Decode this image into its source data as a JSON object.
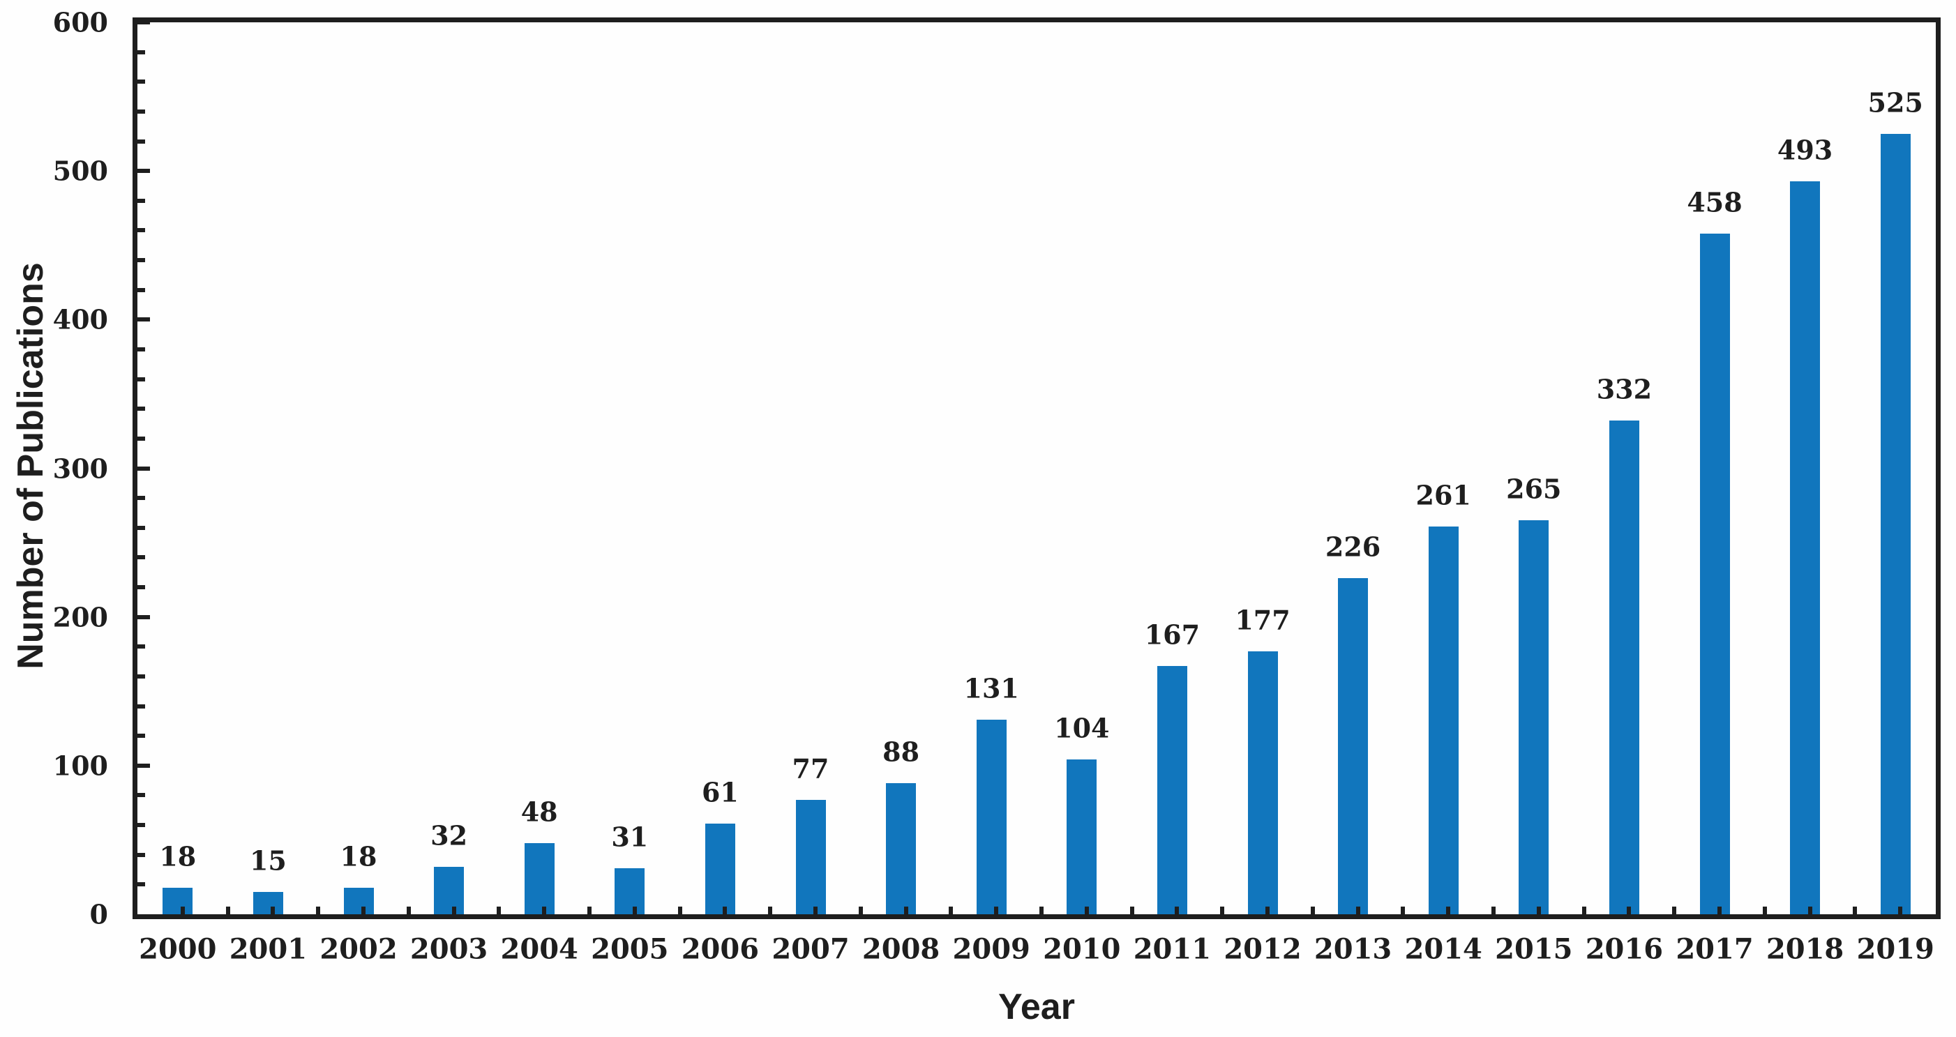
{
  "chart_data": {
    "type": "bar",
    "categories": [
      "2000",
      "2001",
      "2002",
      "2003",
      "2004",
      "2005",
      "2006",
      "2007",
      "2008",
      "2009",
      "2010",
      "2011",
      "2012",
      "2013",
      "2014",
      "2015",
      "2016",
      "2017",
      "2018",
      "2019"
    ],
    "values": [
      18,
      15,
      18,
      32,
      48,
      31,
      61,
      77,
      88,
      131,
      104,
      167,
      177,
      226,
      261,
      265,
      332,
      458,
      493,
      525
    ],
    "title": "",
    "xlabel": "Year",
    "ylabel": "Number of Publications",
    "ylim": [
      0,
      600
    ],
    "y_tick_labels": [
      "0",
      "100",
      "200",
      "300",
      "400",
      "500",
      "600"
    ],
    "y_major_tick_step": 100,
    "y_minor_tick_step": 20,
    "grid": "off",
    "legend": "none",
    "data_labels": "above bars",
    "colors": {
      "bar": "#1176bd",
      "axis": "#1e1e1e",
      "text": "#1e1e1e",
      "background": "#fefefe"
    }
  }
}
